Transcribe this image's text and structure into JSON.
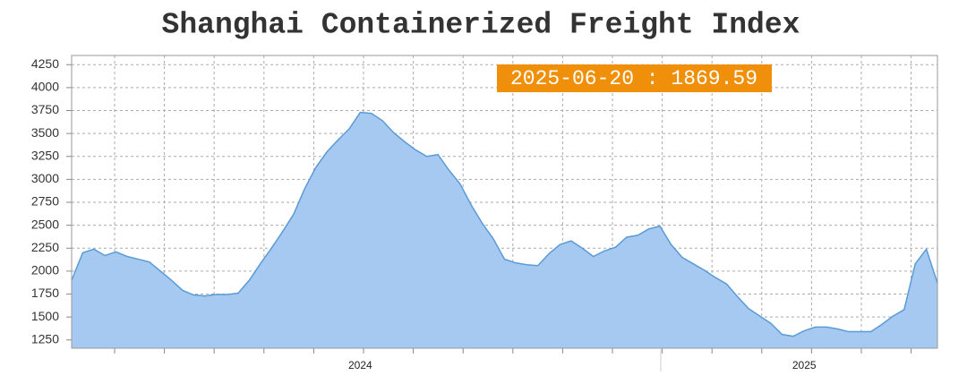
{
  "chart_data": {
    "type": "area",
    "title": "Shanghai Containerized Freight Index",
    "annotation": "2025-06-20 : 1869.59",
    "categories": [
      null,
      null,
      null,
      null,
      null,
      null,
      null,
      null,
      null,
      null,
      null,
      null,
      null,
      null,
      null,
      null,
      null,
      null,
      null,
      null,
      null,
      null,
      null,
      null,
      null,
      null,
      "2024",
      null,
      null,
      null,
      null,
      null,
      null,
      null,
      null,
      null,
      null,
      null,
      null,
      null,
      null,
      null,
      null,
      null,
      null,
      null,
      null,
      null,
      null,
      null,
      null,
      null,
      null,
      null,
      null,
      null,
      null,
      null,
      null,
      null,
      null,
      null,
      null,
      null,
      null,
      null,
      "2025",
      null,
      null,
      null,
      null,
      null,
      null,
      null,
      null,
      null,
      null,
      null,
      null
    ],
    "values": [
      1900,
      2200,
      2240,
      2170,
      2210,
      2160,
      2130,
      2100,
      2000,
      1900,
      1790,
      1740,
      1730,
      1745,
      1745,
      1760,
      1900,
      2080,
      2250,
      2430,
      2620,
      2900,
      3130,
      3300,
      3430,
      3550,
      3730,
      3720,
      3640,
      3510,
      3410,
      3320,
      3250,
      3270,
      3100,
      2950,
      2720,
      2520,
      2350,
      2130,
      2090,
      2070,
      2060,
      2190,
      2290,
      2330,
      2250,
      2160,
      2220,
      2260,
      2370,
      2390,
      2460,
      2490,
      2290,
      2150,
      2080,
      2010,
      1930,
      1860,
      1720,
      1590,
      1510,
      1430,
      1310,
      1290,
      1350,
      1390,
      1390,
      1370,
      1340,
      1340,
      1340,
      1420,
      1510,
      1580,
      2080,
      2240,
      1869.59
    ],
    "color": "#5b9bd5",
    "fill": "#a6c9f2",
    "ylim": [
      1160,
      4350
    ],
    "yticks": [
      1250,
      1500,
      1750,
      2000,
      2250,
      2500,
      2750,
      3000,
      3250,
      3500,
      3750,
      4000,
      4250
    ],
    "grid": true
  }
}
